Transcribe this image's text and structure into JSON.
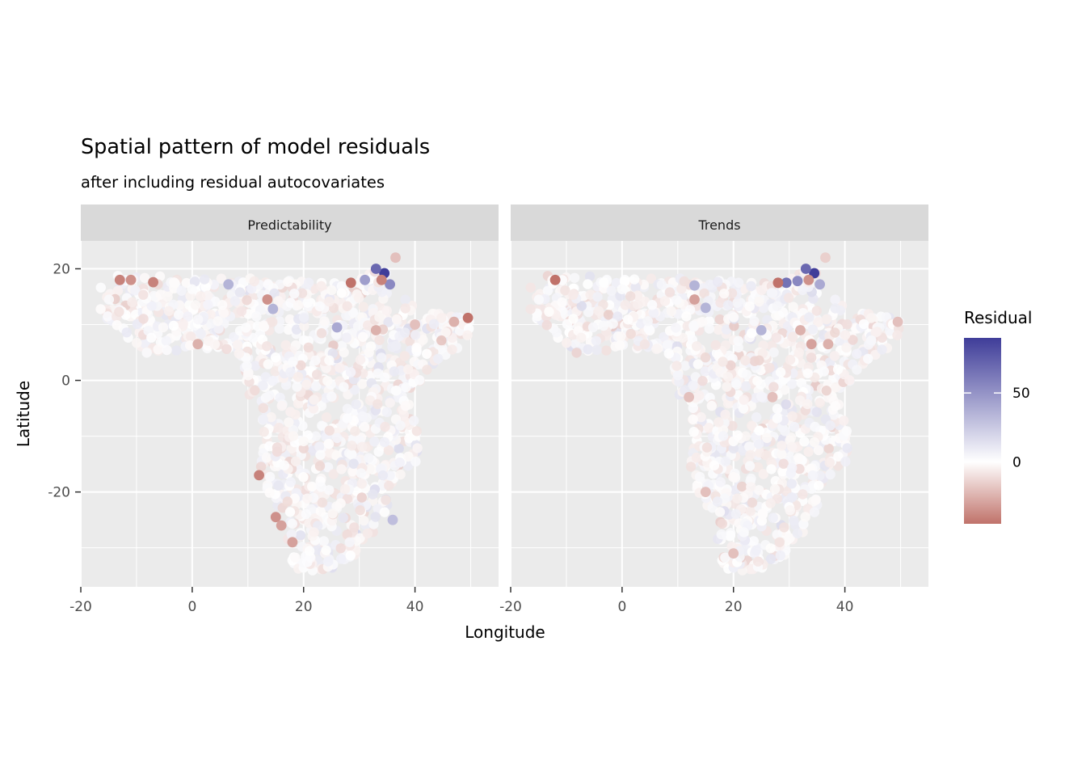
{
  "chart_data": {
    "type": "scatter",
    "title": "Spatial pattern of model residuals",
    "subtitle": "after including residual autocovariates",
    "xlabel": "Longitude",
    "ylabel": "Latitude",
    "xlim": [
      -20,
      55
    ],
    "ylim": [
      -37,
      25
    ],
    "x_ticks": [
      -20,
      0,
      20,
      40
    ],
    "y_ticks": [
      20,
      0,
      -20
    ],
    "x_tick_labels": [
      "-20",
      "0",
      "20",
      "40"
    ],
    "y_tick_labels": [
      "20",
      "0",
      "-20"
    ],
    "grid": true,
    "legend": {
      "title": "Residual",
      "position": "right",
      "type": "gradient",
      "low_color": "#c0726a",
      "mid_color": "#ffffff",
      "high_color": "#3f3d99",
      "limits": [
        -45,
        90
      ],
      "breaks": [
        50,
        0
      ],
      "break_labels": [
        "50",
        "0"
      ]
    },
    "panels": [
      {
        "name": "Predictability",
        "notable_points": [
          {
            "x": 34.5,
            "y": 19.2,
            "value": 90
          },
          {
            "x": 33,
            "y": 20,
            "value": 70
          },
          {
            "x": 35.5,
            "y": 17.2,
            "value": 55
          },
          {
            "x": 31,
            "y": 18,
            "value": 45
          },
          {
            "x": 6.5,
            "y": 17.2,
            "value": 35
          },
          {
            "x": 14.5,
            "y": 12.8,
            "value": 35
          },
          {
            "x": 26,
            "y": 9.5,
            "value": 40
          },
          {
            "x": 36,
            "y": -25,
            "value": 30
          },
          {
            "x": -13,
            "y": 18,
            "value": -40
          },
          {
            "x": -11,
            "y": 18,
            "value": -35
          },
          {
            "x": -7,
            "y": 17.6,
            "value": -40
          },
          {
            "x": 28.5,
            "y": 17.5,
            "value": -45
          },
          {
            "x": 34,
            "y": 18,
            "value": -40
          },
          {
            "x": 49.5,
            "y": 11.2,
            "value": -45
          },
          {
            "x": 47,
            "y": 10.5,
            "value": -25
          },
          {
            "x": 13.5,
            "y": 14.5,
            "value": -35
          },
          {
            "x": 12,
            "y": -17,
            "value": -40
          },
          {
            "x": 15,
            "y": -24.5,
            "value": -35
          },
          {
            "x": 16,
            "y": -26,
            "value": -30
          },
          {
            "x": 18,
            "y": -29,
            "value": -30
          },
          {
            "x": 36.5,
            "y": 22,
            "value": -20
          },
          {
            "x": 33,
            "y": 9,
            "value": -25
          },
          {
            "x": 1,
            "y": 6.5,
            "value": -25
          },
          {
            "x": 40,
            "y": 10,
            "value": -20
          }
        ]
      },
      {
        "name": "Trends",
        "notable_points": [
          {
            "x": 34.5,
            "y": 19.2,
            "value": 90
          },
          {
            "x": 33,
            "y": 20,
            "value": 70
          },
          {
            "x": 29.5,
            "y": 17.5,
            "value": 65
          },
          {
            "x": 31.5,
            "y": 17.8,
            "value": 55
          },
          {
            "x": 35.5,
            "y": 17.2,
            "value": 40
          },
          {
            "x": 13,
            "y": 17,
            "value": 35
          },
          {
            "x": 15,
            "y": 13,
            "value": 35
          },
          {
            "x": 25,
            "y": 9,
            "value": 35
          },
          {
            "x": -12,
            "y": 18,
            "value": -45
          },
          {
            "x": 28,
            "y": 17.5,
            "value": -45
          },
          {
            "x": 33.5,
            "y": 18,
            "value": -35
          },
          {
            "x": 13,
            "y": 14.5,
            "value": -30
          },
          {
            "x": 32,
            "y": 9,
            "value": -25
          },
          {
            "x": 34,
            "y": 6.5,
            "value": -30
          },
          {
            "x": 37,
            "y": 6.5,
            "value": -25
          },
          {
            "x": 49.5,
            "y": 10.5,
            "value": -20
          },
          {
            "x": 12,
            "y": -3,
            "value": -20
          },
          {
            "x": 27,
            "y": -3,
            "value": -20
          },
          {
            "x": 15,
            "y": -20,
            "value": -20
          },
          {
            "x": 20,
            "y": -31,
            "value": -20
          },
          {
            "x": 36.5,
            "y": 22,
            "value": -15
          }
        ]
      }
    ]
  }
}
